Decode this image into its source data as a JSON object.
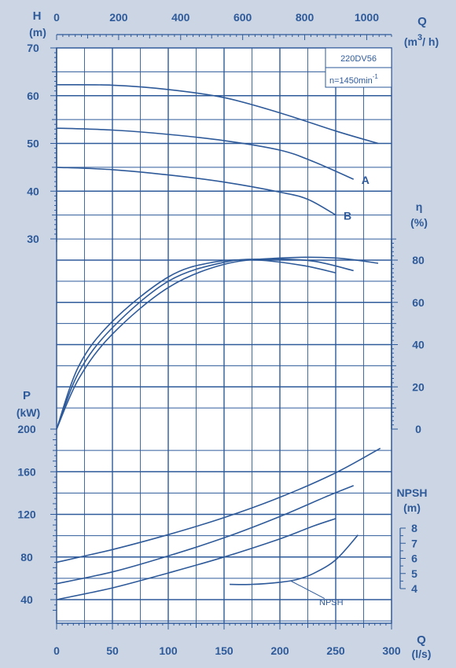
{
  "chart_data": {
    "type": "line",
    "title": "220DV56",
    "speed_label": "n=1450min",
    "speed_exp": "-1",
    "flow_lps": {
      "label": "Q",
      "unit": "(l/s)",
      "ticks": [
        0,
        50,
        100,
        150,
        200,
        250,
        300
      ],
      "range": [
        0,
        300
      ]
    },
    "flow_m3h": {
      "label": "Q",
      "unit_base": "(m",
      "unit_exp": "3",
      "unit_end": "/ h)",
      "ticks": [
        0,
        200,
        400,
        600,
        800,
        1000
      ],
      "range": [
        0,
        1080
      ]
    },
    "head": {
      "label": "H",
      "unit": "(m)",
      "ticks": [
        30,
        40,
        50,
        60,
        70
      ],
      "range": [
        30,
        70
      ],
      "series": [
        {
          "name": "",
          "x": [
            0,
            50,
            100,
            150,
            200,
            250,
            288
          ],
          "y": [
            62.3,
            62.2,
            61.3,
            59.6,
            56.4,
            52.6,
            50.0
          ]
        },
        {
          "name": "A",
          "x": [
            0,
            50,
            100,
            150,
            200,
            230,
            266
          ],
          "y": [
            53.2,
            52.8,
            51.9,
            50.6,
            48.6,
            46.2,
            42.5
          ]
        },
        {
          "name": "B",
          "x": [
            0,
            50,
            100,
            150,
            200,
            225,
            250
          ],
          "y": [
            45.0,
            44.5,
            43.4,
            41.9,
            39.8,
            38.3,
            35.0
          ]
        }
      ]
    },
    "efficiency": {
      "label": "η",
      "unit": "(%)",
      "ticks": [
        0,
        20,
        40,
        60,
        80
      ],
      "range": [
        0,
        90
      ],
      "series": [
        {
          "name": "",
          "x": [
            0,
            20,
            50,
            100,
            150,
            200,
            250,
            288
          ],
          "y": [
            0,
            24,
            45,
            67,
            78,
            81,
            81,
            78.5
          ]
        },
        {
          "name": "",
          "x": [
            0,
            20,
            50,
            100,
            150,
            190,
            230,
            266
          ],
          "y": [
            0,
            27,
            48,
            70,
            79,
            80.5,
            79.5,
            75
          ]
        },
        {
          "name": "",
          "x": [
            0,
            20,
            50,
            100,
            140,
            180,
            220,
            250
          ],
          "y": [
            0,
            30,
            51,
            72,
            79,
            80,
            77.5,
            74
          ]
        }
      ]
    },
    "power": {
      "label": "P",
      "unit": "(kW)",
      "ticks": [
        40,
        80,
        120,
        160,
        200
      ],
      "range": [
        25,
        200
      ],
      "series": [
        {
          "name": "",
          "x": [
            0,
            50,
            100,
            150,
            200,
            250,
            290
          ],
          "y": [
            75,
            87,
            101,
            117,
            136,
            159,
            182
          ]
        },
        {
          "name": "",
          "x": [
            0,
            50,
            100,
            150,
            200,
            240,
            266
          ],
          "y": [
            55,
            66,
            81,
            98,
            118,
            136,
            147
          ]
        },
        {
          "name": "",
          "x": [
            0,
            50,
            100,
            150,
            200,
            230,
            250
          ],
          "y": [
            40,
            51,
            65,
            80,
            97,
            109,
            116
          ]
        }
      ]
    },
    "npsh": {
      "label": "NPSH",
      "unit": "(m)",
      "ticks": [
        4,
        5,
        6,
        7,
        8
      ],
      "range": [
        4,
        8
      ],
      "curve_label": "NPSH",
      "x": [
        155,
        175,
        200,
        215,
        230,
        250,
        270
      ],
      "y": [
        4.28,
        4.28,
        4.42,
        4.6,
        5.0,
        5.9,
        7.55
      ]
    }
  }
}
